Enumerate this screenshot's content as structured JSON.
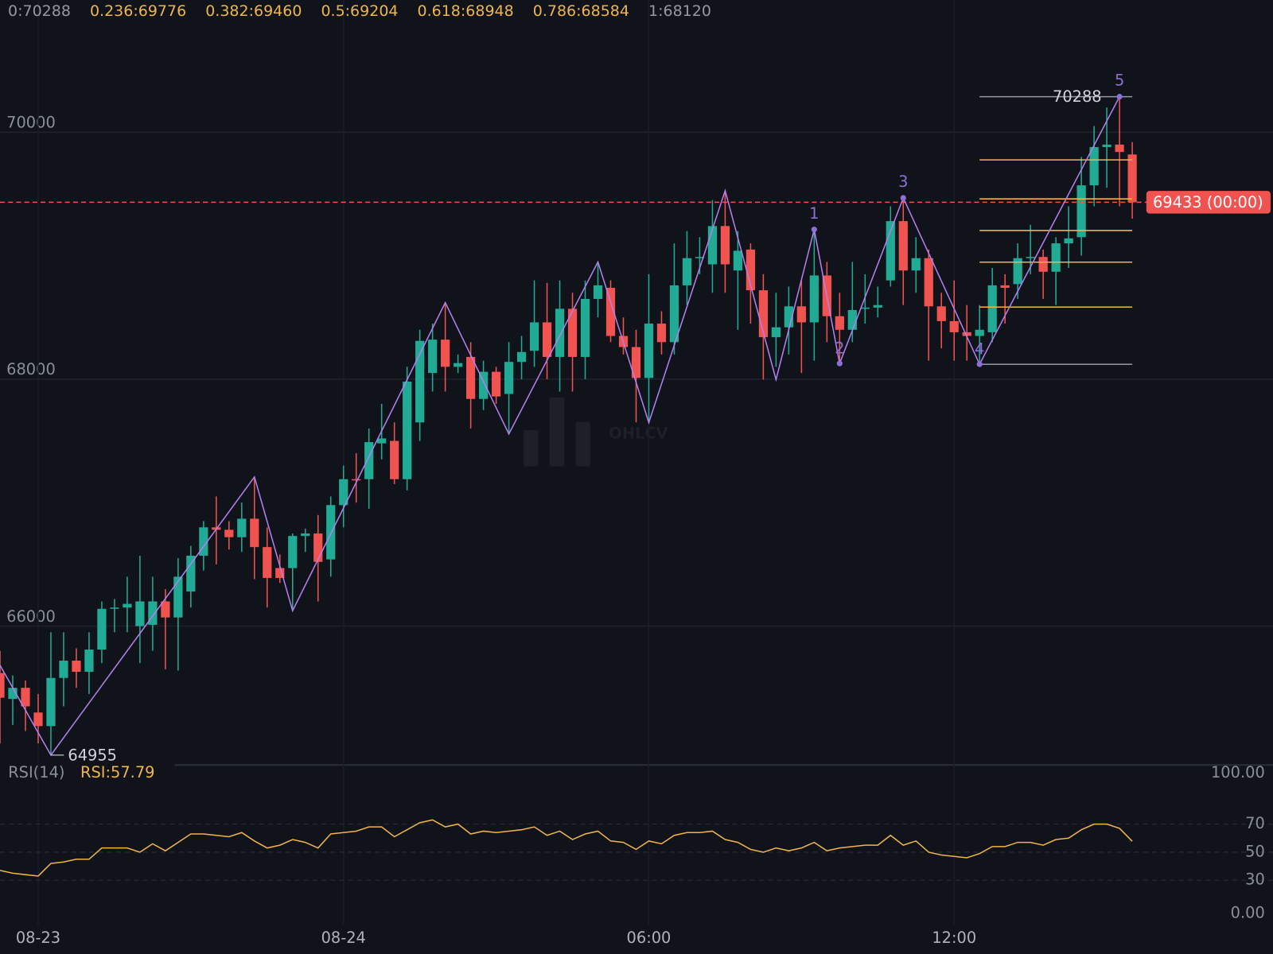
{
  "chart_data": {
    "type": "candlestick",
    "categories": [
      null,
      null,
      null,
      "08-23",
      null,
      null,
      null,
      null,
      null,
      null,
      null,
      null,
      null,
      null,
      null,
      null,
      null,
      null,
      null,
      null,
      null,
      null,
      null,
      null,
      null,
      null,
      null,
      "08-24",
      null,
      null,
      null,
      null,
      null,
      null,
      null,
      null,
      null,
      null,
      null,
      null,
      null,
      null,
      null,
      null,
      null,
      null,
      null,
      null,
      null,
      null,
      null,
      "06:00",
      null,
      null,
      null,
      null,
      null,
      null,
      null,
      null,
      null,
      null,
      null,
      null,
      null,
      null,
      null,
      null,
      null,
      null,
      null,
      null,
      null,
      null,
      null,
      "12:00",
      null,
      null,
      null,
      null,
      null,
      null,
      null,
      null,
      null,
      null,
      null,
      null,
      null,
      null
    ],
    "open": [
      65620,
      65410,
      65500,
      65300,
      65190,
      65580,
      65720,
      65630,
      65810,
      66140,
      66150,
      66000,
      66010,
      66200,
      66070,
      66280,
      66570,
      66800,
      66780,
      66720,
      66870,
      66640,
      66470,
      66470,
      66730,
      66750,
      66540,
      66980,
      67190,
      67190,
      67480,
      67500,
      67190,
      67650,
      68050,
      68320,
      68100,
      68180,
      67840,
      68060,
      67880,
      68140,
      68230,
      68460,
      68180,
      68570,
      68180,
      68650,
      68740,
      68350,
      68260,
      68010,
      68450,
      68300,
      68760,
      68980,
      68930,
      69240,
      68880,
      69050,
      68720,
      68340,
      68420,
      68590,
      68460,
      68840,
      68510,
      68400,
      68570,
      68580,
      68800,
      69280,
      68880,
      68980,
      68590,
      68470,
      68380,
      68350,
      68380,
      68760,
      68770,
      68990,
      68990,
      68870,
      69100,
      69150,
      69570,
      69880,
      69900,
      69820
    ],
    "high": [
      65800,
      65600,
      65560,
      65450,
      65950,
      65950,
      65820,
      65950,
      66200,
      66220,
      66400,
      66570,
      66400,
      66300,
      66550,
      66650,
      66850,
      67050,
      66850,
      67000,
      67208,
      66800,
      66580,
      66750,
      66790,
      66900,
      67050,
      67300,
      67400,
      67600,
      67800,
      67650,
      68100,
      68400,
      68450,
      68620,
      68200,
      68300,
      68150,
      68100,
      68300,
      68350,
      68800,
      68780,
      68800,
      68700,
      68800,
      68949,
      68800,
      68500,
      68400,
      68850,
      68550,
      69100,
      69200,
      69150,
      69450,
      69527,
      69200,
      69100,
      68850,
      68700,
      68750,
      68800,
      69212,
      68950,
      68700,
      68950,
      68850,
      68750,
      69400,
      69468,
      69150,
      69050,
      68700,
      68800,
      68600,
      68600,
      68900,
      68850,
      69100,
      69250,
      69050,
      69150,
      69400,
      69800,
      70050,
      70200,
      70288,
      69920
    ],
    "low": [
      65050,
      65200,
      65150,
      65050,
      64955,
      65350,
      65500,
      65450,
      65700,
      65950,
      65950,
      65700,
      65800,
      65650,
      65640,
      66150,
      66450,
      66500,
      66620,
      66600,
      66380,
      66150,
      66350,
      66124,
      66600,
      66200,
      66400,
      66800,
      67000,
      66950,
      67350,
      67150,
      67100,
      67500,
      67900,
      67900,
      68050,
      67600,
      67750,
      67800,
      67556,
      68000,
      68100,
      68000,
      67900,
      67900,
      68000,
      68500,
      68300,
      68200,
      67650,
      67648,
      68200,
      68200,
      68600,
      68850,
      68700,
      68700,
      68400,
      68450,
      67996,
      68100,
      68200,
      68050,
      68150,
      68300,
      68127,
      68300,
      68450,
      68500,
      68750,
      68600,
      68700,
      68150,
      68250,
      68150,
      68150,
      68121,
      68300,
      68450,
      68650,
      68850,
      68650,
      68600,
      68900,
      69000,
      69400,
      69550,
      69400,
      69300
    ],
    "close": [
      65420,
      65500,
      65350,
      65190,
      65580,
      65720,
      65630,
      65810,
      66140,
      66150,
      66180,
      66200,
      66200,
      66070,
      66400,
      66570,
      66800,
      66780,
      66720,
      66870,
      66640,
      66390,
      66390,
      66730,
      66750,
      66520,
      66980,
      67190,
      67180,
      67490,
      67520,
      67190,
      67980,
      68310,
      68320,
      68100,
      68130,
      67840,
      68060,
      67860,
      68140,
      68220,
      68460,
      68180,
      68570,
      68180,
      68650,
      68760,
      68350,
      68260,
      68010,
      68450,
      68300,
      68760,
      68980,
      68990,
      69240,
      68930,
      69040,
      68720,
      68340,
      68420,
      68590,
      68460,
      68840,
      68510,
      68400,
      68560,
      68580,
      68600,
      69280,
      68880,
      68980,
      68590,
      68470,
      68380,
      68350,
      68400,
      68760,
      68740,
      68980,
      68990,
      68870,
      69100,
      69140,
      69570,
      69880,
      69900,
      69840,
      69433
    ],
    "up_color": "#22ab94",
    "down_color": "#f05350",
    "ylim": [
      64875,
      71071
    ],
    "yticks": [
      66000,
      68000,
      70000
    ],
    "grid": true,
    "zigzag": {
      "x": [
        0,
        4,
        20,
        23,
        35,
        40,
        47,
        51,
        57,
        61,
        64,
        66,
        71,
        77,
        88
      ],
      "values": [
        65683,
        64955,
        67208,
        66124,
        68620,
        67556,
        68949,
        67648,
        69527,
        67996,
        69212,
        68127,
        69468,
        68121,
        70288
      ],
      "color": "#b57ff0",
      "wave_labels": [
        null,
        null,
        null,
        null,
        null,
        null,
        null,
        null,
        null,
        null,
        "1",
        "2",
        "3",
        "4",
        "5"
      ],
      "wave_color": "#8e6fd8"
    },
    "fib_levels": [
      {
        "label": "0:70288",
        "value": 70288,
        "color": "#9598a1"
      },
      {
        "label": "0.236:69776",
        "value": 69776,
        "color": "#f0b44c"
      },
      {
        "label": "0.382:69460",
        "value": 69460,
        "color": "#f0b44c"
      },
      {
        "label": "0.5:69204",
        "value": 69204,
        "color": "#f0b44c"
      },
      {
        "label": "0.618:68948",
        "value": 68948,
        "color": "#f0b44c"
      },
      {
        "label": "0.786:68584",
        "value": 68584,
        "color": "#f0b44c"
      },
      {
        "label": "1:68120",
        "value": 68120,
        "color": "#9598a1"
      }
    ],
    "last_price": {
      "value": 69433,
      "label": "69433 (00:00)",
      "color": "#f05350"
    },
    "watermark": "OHLCV",
    "rsi": {
      "name": "RSI(14)",
      "value_label": "RSI:57.79",
      "value": 57.79,
      "color": "#f0b44c",
      "values": [
        37,
        35,
        34,
        33,
        42,
        43,
        45,
        45,
        53,
        53,
        53,
        50,
        56,
        51,
        57,
        63,
        63,
        62,
        61,
        64,
        58,
        53,
        55,
        59,
        57,
        53,
        63,
        64,
        65,
        68,
        68,
        61,
        66,
        71,
        73,
        68,
        70,
        63,
        65,
        64,
        65,
        66,
        68,
        62,
        65,
        59,
        63,
        65,
        58,
        57,
        52,
        58,
        56,
        62,
        64,
        64,
        65,
        59,
        57,
        52,
        50,
        53,
        51,
        53,
        57,
        51,
        53,
        54,
        55,
        55,
        62,
        55,
        58,
        50,
        48,
        47,
        46,
        49,
        54,
        54,
        57,
        57,
        55,
        59,
        60,
        66,
        70,
        70,
        67,
        57.79
      ],
      "ylim": [
        0,
        100
      ],
      "yticks": [
        {
          "value": 100,
          "label": "100.00"
        },
        70,
        50,
        30,
        {
          "value": 0,
          "label": "0.00"
        }
      ]
    }
  }
}
